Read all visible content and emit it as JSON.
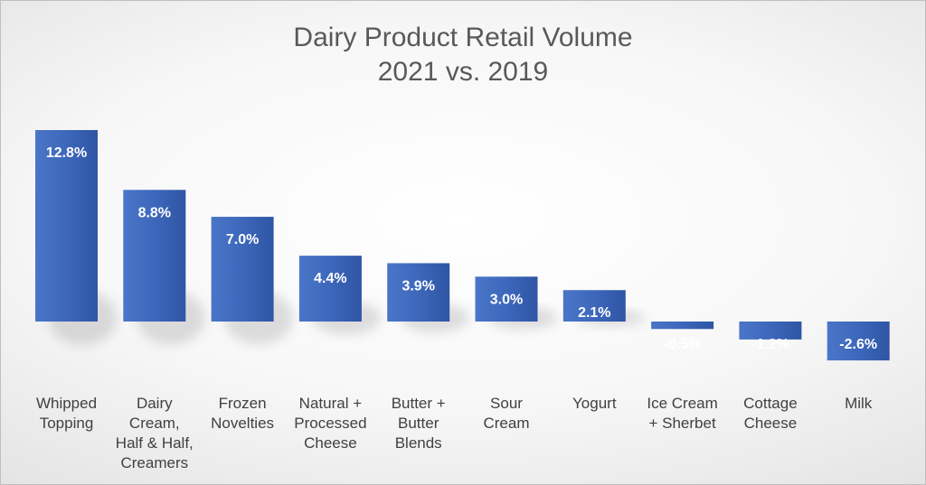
{
  "chart_data": {
    "type": "bar",
    "title": [
      "Dairy Product Retail Volume",
      "2021 vs. 2019"
    ],
    "categories": [
      [
        "Whipped",
        "Topping"
      ],
      [
        "Dairy",
        "Cream,",
        "Half & Half,",
        "Creamers"
      ],
      [
        "Frozen",
        "Novelties"
      ],
      [
        "Natural +",
        "Processed",
        "Cheese"
      ],
      [
        "Butter +",
        "Butter",
        "Blends"
      ],
      [
        "Sour",
        "Cream"
      ],
      [
        "Yogurt"
      ],
      [
        "Ice Cream",
        "+ Sherbet"
      ],
      [
        "Cottage",
        "Cheese"
      ],
      [
        "Milk"
      ]
    ],
    "values": [
      12.8,
      8.8,
      7.0,
      4.4,
      3.9,
      3.0,
      2.1,
      -0.5,
      -1.2,
      -2.6
    ],
    "data_labels": [
      "12.8%",
      "8.8%",
      "7.0%",
      "4.4%",
      "3.9%",
      "3.0%",
      "2.1%",
      "-0.5%",
      "-1.2%",
      "-2.6%"
    ],
    "xlabel": "",
    "ylabel": "",
    "ylim": [
      -2.6,
      12.8
    ],
    "grid": false,
    "legend": "none",
    "colors": {
      "bar_top": "#4a76c8",
      "bar_bottom": "#2f55a4",
      "title": "#595959",
      "labels": "#404040"
    }
  }
}
